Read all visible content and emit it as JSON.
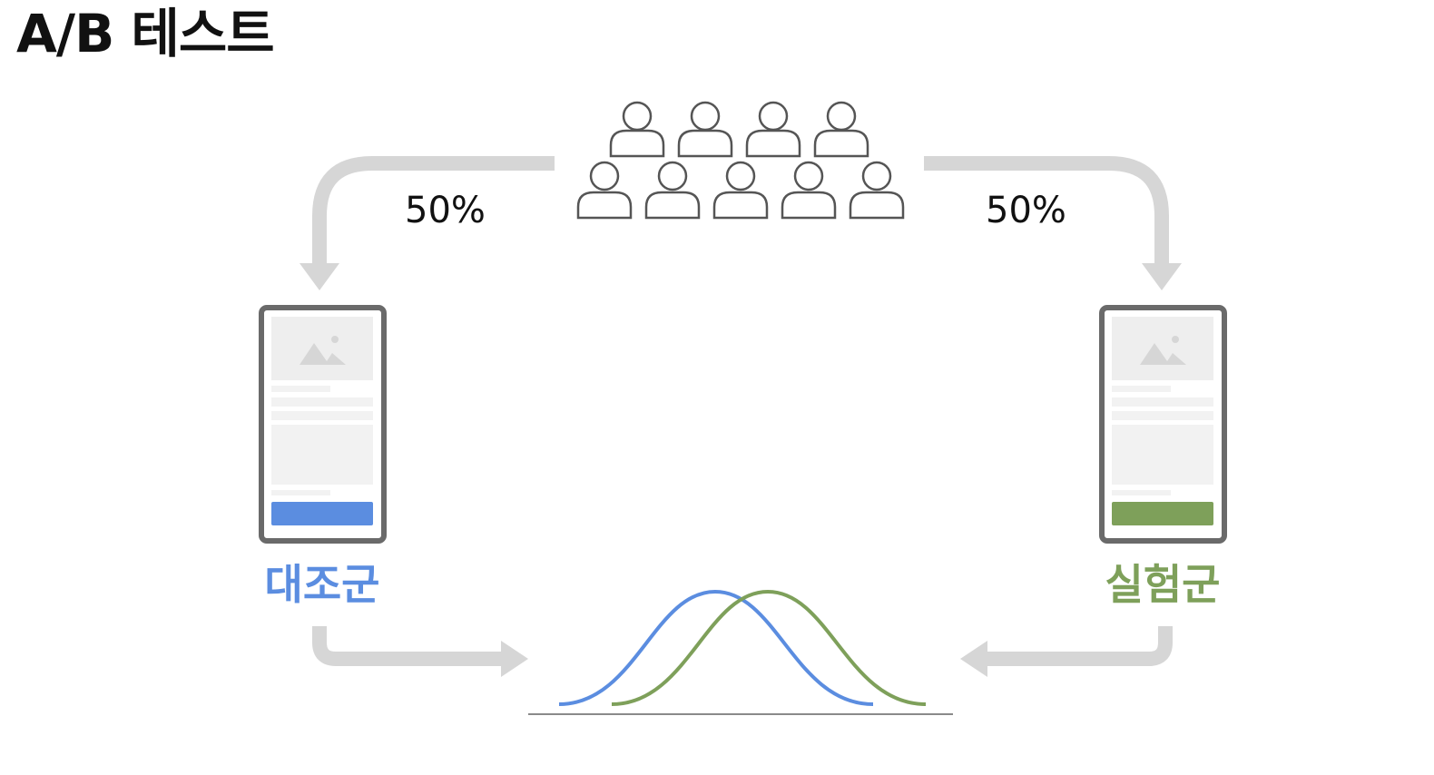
{
  "title": "A/B 테스트",
  "split_left": "50%",
  "split_right": "50%",
  "control_group": {
    "label": "대조군",
    "color": "#5b8de0"
  },
  "treatment_group": {
    "label": "실험군",
    "color": "#7ea05a"
  },
  "colors": {
    "arrow": "#d6d6d6",
    "phone_frame": "#6a6a6a",
    "placeholder": "#eeeeee",
    "person_stroke": "#555555"
  },
  "population_icon_count": 9
}
